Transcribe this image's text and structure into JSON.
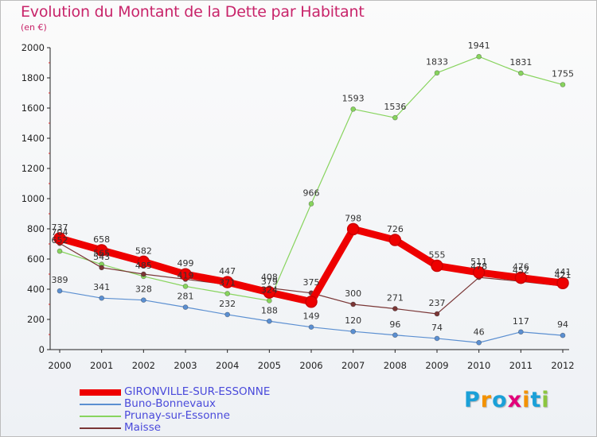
{
  "chart_data": {
    "type": "line",
    "title": "Evolution du Montant de la Dette par Habitant",
    "subtitle": "(en €)",
    "x": [
      "2000",
      "2001",
      "2002",
      "2003",
      "2004",
      "2005",
      "2006",
      "2007",
      "2008",
      "2009",
      "2010",
      "2011",
      "2012"
    ],
    "ylim": [
      0,
      2000
    ],
    "yticks": [
      "0",
      "200",
      "400",
      "600",
      "800",
      "1000",
      "1200",
      "1400",
      "1600",
      "1800",
      "2000"
    ],
    "grid": false,
    "legend_position": "bottom-left",
    "series": [
      {
        "name": "GIRONVILLE-SUR-ESSONNE",
        "color": "#ee0000",
        "values": [
          737,
          658,
          582,
          499,
          447,
          379,
          317,
          798,
          726,
          555,
          511,
          476,
          441
        ],
        "labels": [
          "737",
          "658",
          "582",
          "499",
          "447",
          "379",
          "",
          "798",
          "726",
          "555",
          "511",
          "476",
          "441"
        ]
      },
      {
        "name": "Buno-Bonnevaux",
        "color": "#5b8fd1",
        "values": [
          389,
          341,
          328,
          281,
          232,
          188,
          149,
          120,
          96,
          74,
          46,
          117,
          94
        ],
        "labels": [
          "389",
          "341",
          "328",
          "281",
          "232",
          "188",
          "149",
          "120",
          "96",
          "74",
          "46",
          "117",
          "94"
        ]
      },
      {
        "name": "Prunay-sur-Essonne",
        "color": "#88d45e",
        "values": [
          652,
          565,
          485,
          419,
          371,
          324,
          966,
          1593,
          1536,
          1833,
          1941,
          1831,
          1755
        ],
        "labels": [
          "652",
          "565",
          "485",
          "419",
          "371",
          "324",
          "966",
          "1593",
          "1536",
          "1833",
          "1941",
          "1831",
          "1755"
        ]
      },
      {
        "name": "Maisse",
        "color": "#7a3636",
        "values": [
          704,
          543,
          500,
          466,
          431,
          408,
          375,
          300,
          271,
          237,
          478,
          452,
          421
        ],
        "labels": [
          "704",
          "543",
          "",
          "",
          "",
          "408",
          "375",
          "300",
          "271",
          "237",
          "478",
          "452",
          "421"
        ]
      }
    ]
  },
  "logo": {
    "letters": [
      "P",
      "r",
      "o",
      "x",
      "i",
      "t",
      "i"
    ],
    "colors": [
      "#1aa0d8",
      "#f39200",
      "#1aa0d8",
      "#e2007a",
      "#f39200",
      "#1aa0d8",
      "#8cc63f"
    ]
  }
}
